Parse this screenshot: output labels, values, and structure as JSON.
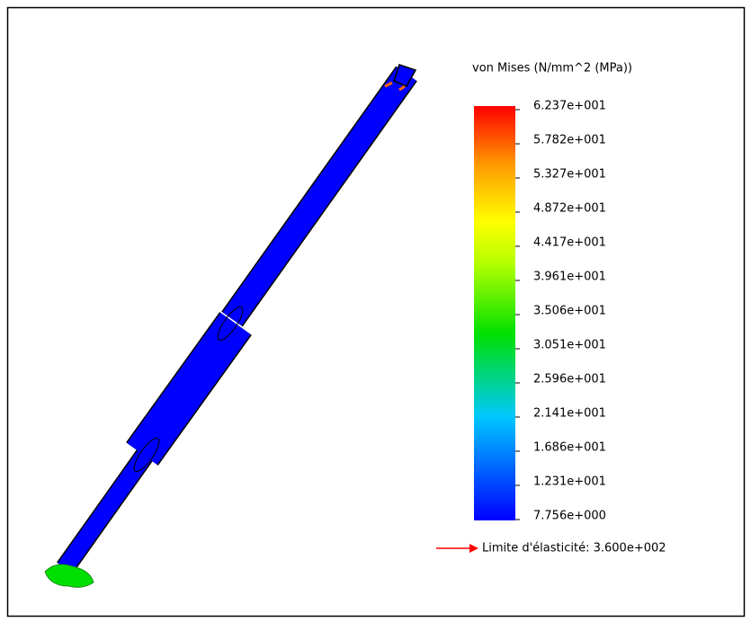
{
  "legend": {
    "title": "von Mises (N/mm^2 (MPa))",
    "ticks": [
      "6.237e+001",
      "5.782e+001",
      "5.327e+001",
      "4.872e+001",
      "4.417e+001",
      "3.961e+001",
      "3.506e+001",
      "3.051e+001",
      "2.596e+001",
      "2.141e+001",
      "1.686e+001",
      "1.231e+001",
      "7.756e+000"
    ]
  },
  "yield_limit": "Limite d'élasticité: 3.600e+002"
}
